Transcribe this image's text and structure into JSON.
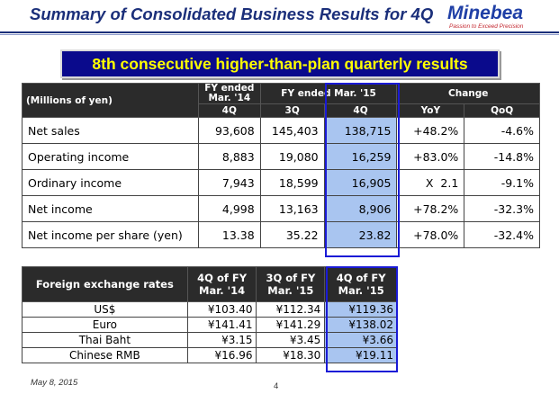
{
  "header": {
    "title": "Summary of Consolidated Business Results for 4Q",
    "logo_name": "Minebea",
    "logo_tagline": "Passion to Exceed Precision"
  },
  "banner": "8th consecutive higher-than-plan quarterly results",
  "results_table": {
    "corner_label": "(Millions of yen)",
    "group_headers": {
      "fy14": "FY ended Mar. '14",
      "fy15": "FY ended Mar. '15",
      "change": "Change"
    },
    "columns": [
      "4Q",
      "3Q",
      "4Q",
      "YoY",
      "QoQ"
    ],
    "rows": [
      {
        "label": "Net sales",
        "fy14_4q": "93,608",
        "fy15_3q": "145,403",
        "fy15_4q": "138,715",
        "yoy": "+48.2%",
        "qoq": "-4.6%"
      },
      {
        "label": "Operating income",
        "fy14_4q": "8,883",
        "fy15_3q": "19,080",
        "fy15_4q": "16,259",
        "yoy": "+83.0%",
        "qoq": "-14.8%"
      },
      {
        "label": "Ordinary income",
        "fy14_4q": "7,943",
        "fy15_3q": "18,599",
        "fy15_4q": "16,905",
        "yoy": "X  2.1",
        "qoq": "-9.1%"
      },
      {
        "label": "Net income",
        "fy14_4q": "4,998",
        "fy15_3q": "13,163",
        "fy15_4q": "8,906",
        "yoy": "+78.2%",
        "qoq": "-32.3%"
      },
      {
        "label": "Net income per share (yen)",
        "fy14_4q": "13.38",
        "fy15_3q": "35.22",
        "fy15_4q": "23.82",
        "yoy": "+78.0%",
        "qoq": "-32.4%"
      }
    ]
  },
  "fx_table": {
    "headers": [
      "Foreign exchange rates",
      "4Q of FY Mar. '14",
      "3Q of FY Mar. '15",
      "4Q of FY Mar. '15"
    ],
    "rows": [
      {
        "label": "US$",
        "c1": "¥103.40",
        "c2": "¥112.34",
        "c3": "¥119.36"
      },
      {
        "label": "Euro",
        "c1": "¥141.41",
        "c2": "¥141.29",
        "c3": "¥138.02"
      },
      {
        "label": "Thai Baht",
        "c1": "¥3.15",
        "c2": "¥3.45",
        "c3": "¥3.66"
      },
      {
        "label": "Chinese RMB",
        "c1": "¥16.96",
        "c2": "¥18.30",
        "c3": "¥19.11"
      }
    ]
  },
  "footer": {
    "date": "May 8, 2015",
    "page": "4"
  },
  "colors": {
    "title": "#1b2f7a",
    "banner_bg": "#0a0a8c",
    "banner_text": "#ffff00",
    "highlight": "#a9c5f0",
    "highlight_border": "#1a1ad6"
  }
}
